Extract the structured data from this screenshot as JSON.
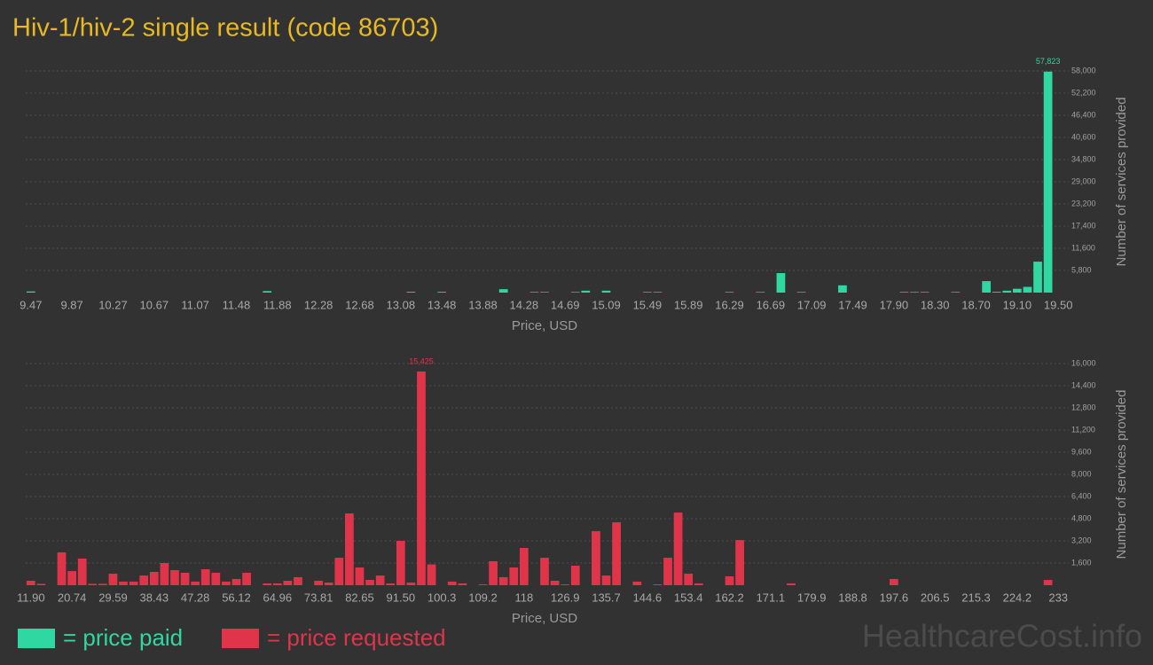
{
  "title": "Hiv-1/hiv-2 single result (code 86703)",
  "watermark": "HealthcareCost.info",
  "chart_data": [
    {
      "type": "bar",
      "xlabel": "Price, USD",
      "ylabel": "Number of services provided",
      "categories": [
        "9.47",
        null,
        null,
        null,
        "9.87",
        null,
        null,
        null,
        "10.27",
        null,
        null,
        null,
        "10.67",
        null,
        null,
        null,
        "11.07",
        null,
        null,
        null,
        "11.48",
        null,
        null,
        null,
        "11.88",
        null,
        null,
        null,
        "12.28",
        null,
        null,
        null,
        "12.68",
        null,
        null,
        null,
        "13.08",
        null,
        null,
        null,
        "13.48",
        null,
        null,
        null,
        "13.88",
        null,
        null,
        null,
        "14.28",
        null,
        null,
        null,
        "14.69",
        null,
        null,
        null,
        "15.09",
        null,
        null,
        null,
        "15.49",
        null,
        null,
        null,
        "15.89",
        null,
        null,
        null,
        "16.29",
        null,
        null,
        null,
        "16.69",
        null,
        null,
        null,
        "17.09",
        null,
        null,
        null,
        "17.49",
        null,
        null,
        null,
        "17.90",
        null,
        null,
        null,
        "18.30",
        null,
        null,
        null,
        "18.70",
        null,
        null,
        null,
        "19.10",
        null,
        null,
        null,
        "19.50"
      ],
      "series": [
        {
          "name": "= price paid",
          "color": "#2ed8a0",
          "values": [
            300,
            0,
            0,
            0,
            0,
            0,
            0,
            0,
            0,
            0,
            0,
            0,
            0,
            0,
            0,
            0,
            0,
            0,
            0,
            0,
            0,
            0,
            0,
            400,
            0,
            0,
            0,
            0,
            0,
            0,
            0,
            0,
            0,
            0,
            0,
            0,
            0,
            200,
            0,
            0,
            200,
            0,
            0,
            0,
            0,
            0,
            900,
            0,
            0,
            150,
            150,
            0,
            0,
            150,
            500,
            0,
            500,
            0,
            0,
            0,
            150,
            150,
            0,
            0,
            0,
            0,
            0,
            0,
            150,
            0,
            0,
            150,
            0,
            5100,
            0,
            150,
            0,
            0,
            0,
            1900,
            0,
            0,
            0,
            0,
            0,
            150,
            150,
            150,
            0,
            0,
            150,
            0,
            0,
            3000,
            200,
            500,
            1000,
            1500,
            8100,
            57823,
            0
          ],
          "value_labels": [
            null,
            null,
            null,
            null,
            null,
            null,
            null,
            null,
            null,
            null,
            null,
            null,
            null,
            null,
            null,
            null,
            null,
            null,
            null,
            null,
            null,
            null,
            null,
            null,
            null,
            null,
            null,
            null,
            null,
            null,
            null,
            null,
            null,
            null,
            null,
            null,
            null,
            null,
            null,
            null,
            null,
            null,
            null,
            null,
            null,
            null,
            null,
            null,
            null,
            null,
            null,
            null,
            null,
            null,
            null,
            null,
            null,
            null,
            null,
            null,
            null,
            null,
            null,
            null,
            null,
            null,
            null,
            null,
            null,
            null,
            null,
            null,
            null,
            null,
            null,
            null,
            null,
            null,
            null,
            null,
            null,
            null,
            null,
            null,
            null,
            null,
            null,
            null,
            null,
            null,
            null,
            null,
            null,
            null,
            null,
            null,
            null,
            null,
            null,
            "57,823",
            null
          ]
        }
      ],
      "ylim": [
        0,
        58000
      ],
      "yticks": [
        {
          "value": 5800,
          "label": "5,800"
        },
        {
          "value": 11600,
          "label": "11,600"
        },
        {
          "value": 17400,
          "label": "17,400"
        },
        {
          "value": 23200,
          "label": "23,200"
        },
        {
          "value": 29000,
          "label": "29,000"
        },
        {
          "value": 34800,
          "label": "34,800"
        },
        {
          "value": 40600,
          "label": "40,600"
        },
        {
          "value": 46400,
          "label": "46,400"
        },
        {
          "value": 52200,
          "label": "52,200"
        },
        {
          "value": 58000,
          "label": "58,000"
        }
      ],
      "grid": true
    },
    {
      "type": "bar",
      "xlabel": "Price, USD",
      "ylabel": "Number of services provided",
      "categories": [
        "11.90",
        null,
        null,
        null,
        "20.74",
        null,
        null,
        null,
        "29.59",
        null,
        null,
        null,
        "38.43",
        null,
        null,
        null,
        "47.28",
        null,
        null,
        null,
        "56.12",
        null,
        null,
        null,
        "64.96",
        null,
        null,
        null,
        "73.81",
        null,
        null,
        null,
        "82.65",
        null,
        null,
        null,
        "91.50",
        null,
        null,
        null,
        "100.3",
        null,
        null,
        null,
        "109.2",
        null,
        null,
        null,
        "118",
        null,
        null,
        null,
        "126.9",
        null,
        null,
        null,
        "135.7",
        null,
        null,
        null,
        "144.6",
        null,
        null,
        null,
        "153.4",
        null,
        null,
        null,
        "162.2",
        null,
        null,
        null,
        "171.1",
        null,
        null,
        null,
        "179.9",
        null,
        null,
        null,
        "188.8",
        null,
        null,
        null,
        "197.6",
        null,
        null,
        null,
        "206.5",
        null,
        null,
        null,
        "215.3",
        null,
        null,
        null,
        "224.2",
        null,
        null,
        null,
        "233"
      ],
      "series": [
        {
          "name": "= price requested",
          "color": "#e0344a",
          "values": [
            320,
            100,
            0,
            2370,
            1020,
            1920,
            100,
            100,
            830,
            260,
            260,
            700,
            960,
            1600,
            1090,
            900,
            260,
            1150,
            900,
            260,
            450,
            900,
            0,
            130,
            130,
            320,
            580,
            0,
            320,
            190,
            1980,
            5180,
            1280,
            380,
            700,
            130,
            3200,
            190,
            15425,
            1500,
            0,
            260,
            130,
            0,
            60,
            1730,
            580,
            1280,
            2690,
            0,
            1980,
            320,
            60,
            1410,
            0,
            3900,
            700,
            4540,
            0,
            260,
            0,
            60,
            1980,
            5240,
            830,
            130,
            0,
            0,
            640,
            3260,
            0,
            0,
            0,
            0,
            130,
            0,
            0,
            0,
            0,
            0,
            0,
            0,
            0,
            0,
            450,
            0,
            0,
            0,
            0,
            0,
            0,
            0,
            0,
            0,
            0,
            0,
            0,
            0,
            0,
            380,
            0
          ],
          "value_labels": [
            null,
            null,
            null,
            null,
            null,
            null,
            null,
            null,
            null,
            null,
            null,
            null,
            null,
            null,
            null,
            null,
            null,
            null,
            null,
            null,
            null,
            null,
            null,
            null,
            null,
            null,
            null,
            null,
            null,
            null,
            null,
            null,
            null,
            null,
            null,
            null,
            null,
            null,
            "15,425",
            null,
            null,
            null,
            null,
            null,
            null,
            null,
            null,
            null,
            null,
            null,
            null,
            null,
            null,
            null,
            null,
            null,
            null,
            null,
            null,
            null,
            null,
            null,
            null,
            null,
            null,
            null,
            null,
            null,
            null,
            null,
            null,
            null,
            null,
            null,
            null,
            null,
            null,
            null,
            null,
            null,
            null,
            null,
            null,
            null,
            null,
            null,
            null,
            null,
            null,
            null,
            null,
            null,
            null,
            null,
            null,
            null,
            null,
            null,
            null,
            null,
            null
          ]
        }
      ],
      "ylim": [
        0,
        16000
      ],
      "yticks": [
        {
          "value": 1600,
          "label": "1,600"
        },
        {
          "value": 3200,
          "label": "3,200"
        },
        {
          "value": 4800,
          "label": "4,800"
        },
        {
          "value": 6400,
          "label": "6,400"
        },
        {
          "value": 8000,
          "label": "8,000"
        },
        {
          "value": 9600,
          "label": "9,600"
        },
        {
          "value": 11200,
          "label": "11,200"
        },
        {
          "value": 12800,
          "label": "12,800"
        },
        {
          "value": 14400,
          "label": "14,400"
        },
        {
          "value": 16000,
          "label": "16,000"
        }
      ],
      "grid": true
    }
  ]
}
